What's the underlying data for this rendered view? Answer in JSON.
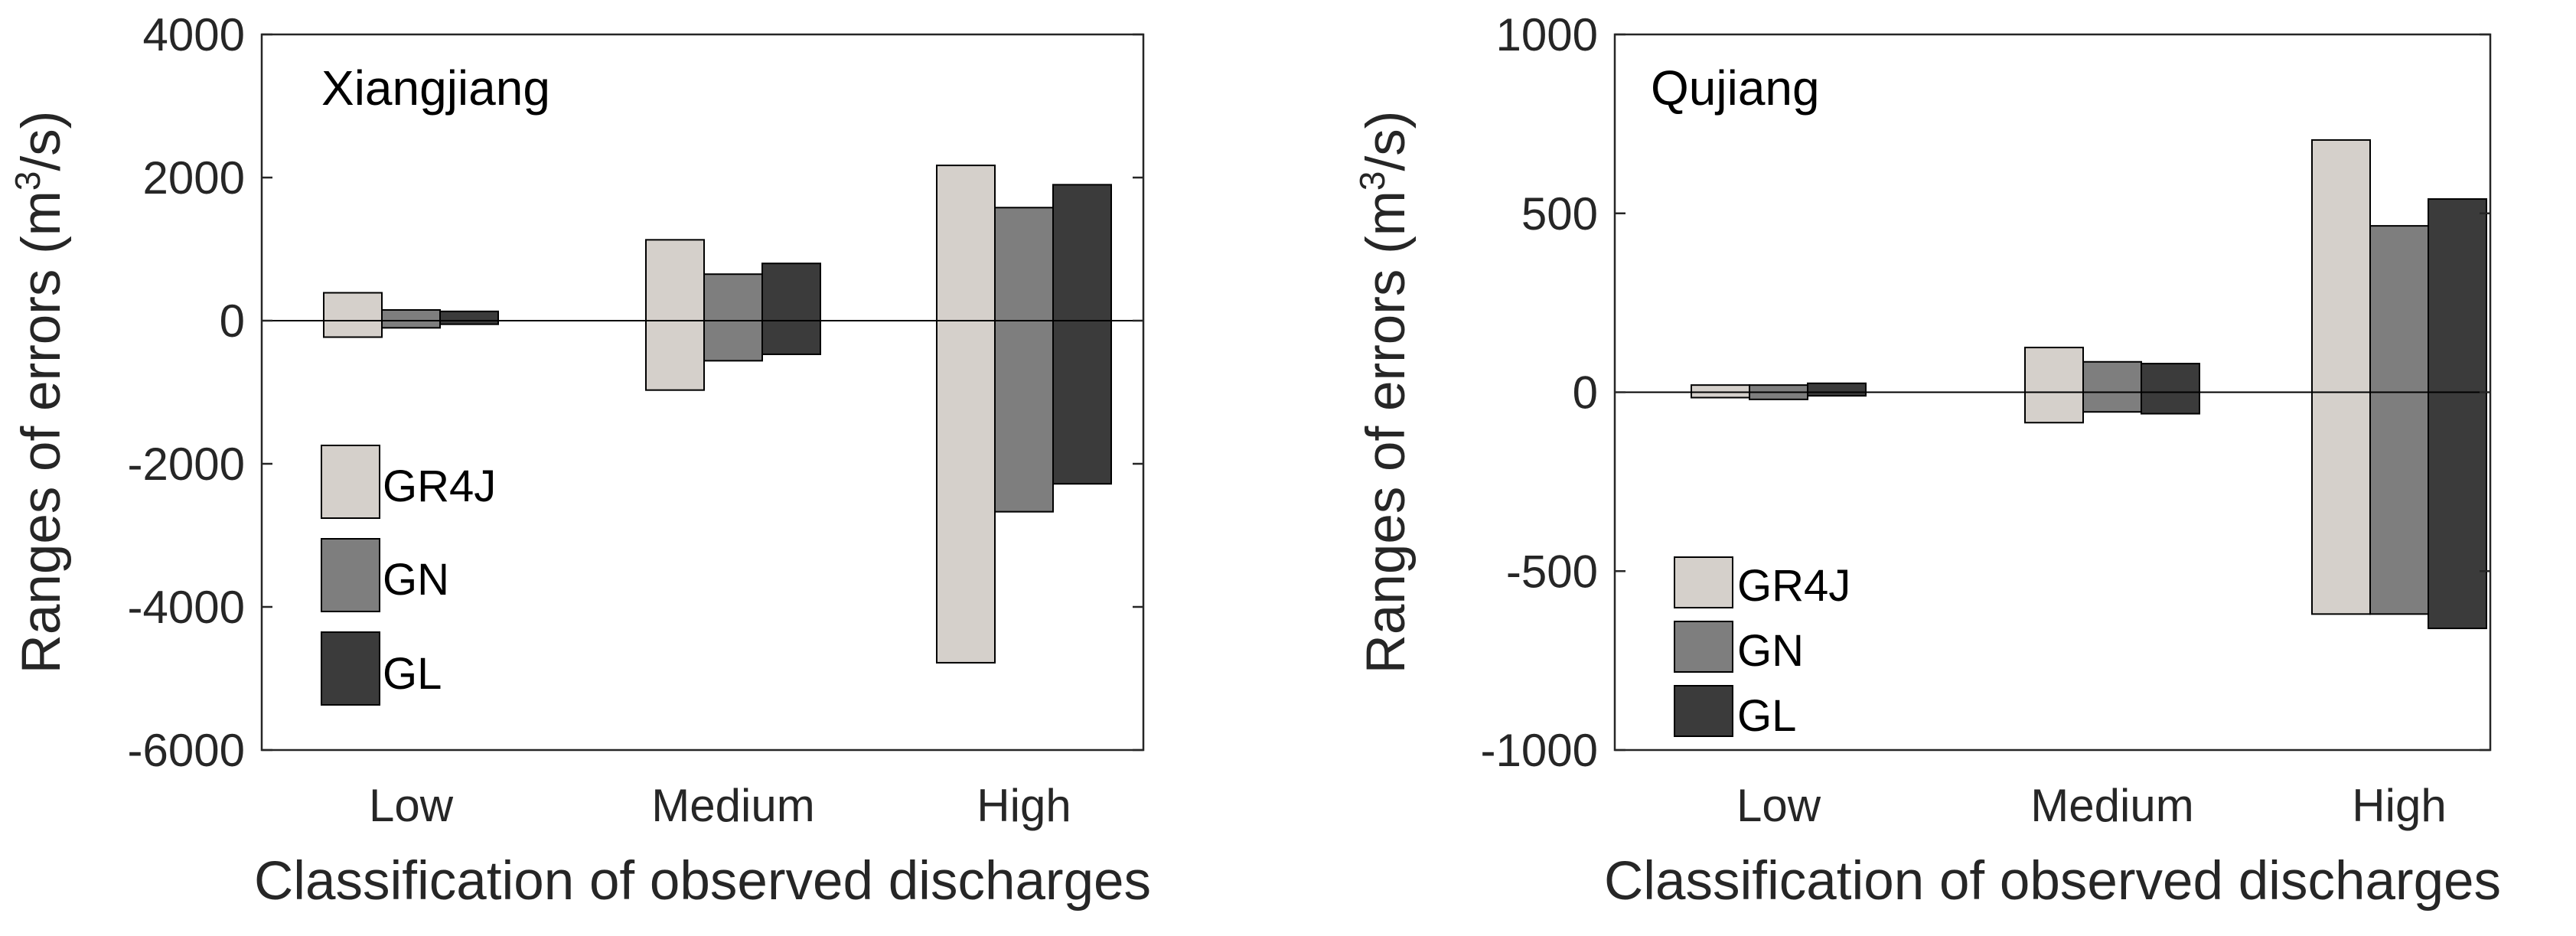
{
  "chart_data": [
    {
      "type": "bar",
      "subtype": "floating-range",
      "title": "Xiangjiang",
      "xlabel": "Classification of observed discharges",
      "ylabel_main": "Ranges of errors (m",
      "ylabel_sup": "3",
      "ylabel_end": "/s)",
      "ylim": [
        -6000,
        4000
      ],
      "yticks": [
        "4000",
        "2000",
        "0",
        "-2000",
        "-4000",
        "-6000"
      ],
      "ytick_values": [
        4000,
        2000,
        0,
        -2000,
        -4000,
        -6000
      ],
      "categories": [
        "Low",
        "Medium",
        "High"
      ],
      "grid": false,
      "legend_position": "lower-left",
      "series": [
        {
          "name": "GR4J",
          "color": "#d5d0cb",
          "ranges": [
            [
              -230,
              390
            ],
            [
              -970,
              1130
            ],
            [
              -4780,
              2170
            ]
          ]
        },
        {
          "name": "GN",
          "color": "#7e7e7e",
          "ranges": [
            [
              -100,
              150
            ],
            [
              -560,
              650
            ],
            [
              -2670,
              1580
            ]
          ]
        },
        {
          "name": "GL",
          "color": "#3b3b3b",
          "ranges": [
            [
              -50,
              130
            ],
            [
              -470,
              800
            ],
            [
              -2280,
              1900
            ]
          ]
        }
      ]
    },
    {
      "type": "bar",
      "subtype": "floating-range",
      "title": "Qujiang",
      "xlabel": "Classification of observed discharges",
      "ylabel_main": "Ranges of errors (m",
      "ylabel_sup": "3",
      "ylabel_end": "/s)",
      "ylim": [
        -1000,
        1000
      ],
      "yticks": [
        "1000",
        "500",
        "0",
        "-500",
        "-1000"
      ],
      "ytick_values": [
        1000,
        500,
        0,
        -500,
        -1000
      ],
      "categories": [
        "Low",
        "Medium",
        "High"
      ],
      "grid": false,
      "legend_position": "lower-left",
      "series": [
        {
          "name": "GR4J",
          "color": "#d5d0cb",
          "ranges": [
            [
              -15,
              20
            ],
            [
              -85,
              125
            ],
            [
              -620,
              705
            ]
          ]
        },
        {
          "name": "GN",
          "color": "#7e7e7e",
          "ranges": [
            [
              -20,
              20
            ],
            [
              -55,
              85
            ],
            [
              -620,
              465
            ]
          ]
        },
        {
          "name": "GL",
          "color": "#3b3b3b",
          "ranges": [
            [
              -10,
              25
            ],
            [
              -60,
              80
            ],
            [
              -660,
              540
            ]
          ]
        }
      ]
    }
  ]
}
